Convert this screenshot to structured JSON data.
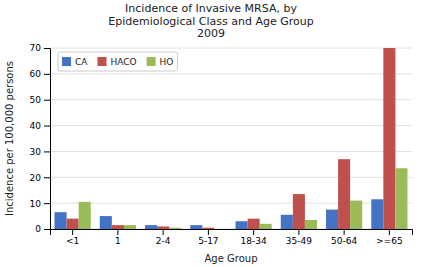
{
  "chart_data": {
    "type": "bar",
    "title": "Incidence of Invasive MRSA, by\nEpidemiological Class and Age Group\n2009",
    "x_label": "Age Group",
    "y_label": "Incidence per 100,000 persons",
    "categories": [
      "<1",
      "1",
      "2-4",
      "5-17",
      "18-34",
      "35-49",
      "50-64",
      ">=65"
    ],
    "series": [
      {
        "name": "CA",
        "color": "#4472C4",
        "values": [
          6.5,
          5.0,
          1.5,
          1.5,
          3.0,
          5.5,
          7.5,
          11.5
        ]
      },
      {
        "name": "HACO",
        "color": "#C0504D",
        "values": [
          4.0,
          1.5,
          1.0,
          0.5,
          4.0,
          13.5,
          27.0,
          70.0
        ]
      },
      {
        "name": "HO",
        "color": "#9BBB59",
        "values": [
          10.5,
          1.5,
          0.5,
          0.0,
          2.0,
          3.5,
          11.0,
          23.5
        ]
      }
    ],
    "ylim": [
      0,
      70
    ],
    "yticks": [
      0,
      10,
      20,
      30,
      40,
      50,
      60,
      70
    ],
    "grid": true,
    "legend": "upper left"
  }
}
